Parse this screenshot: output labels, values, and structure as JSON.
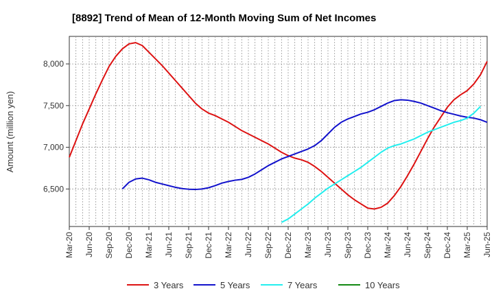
{
  "chart_data": {
    "type": "line",
    "title": "[8892]  Trend of Mean of 12-Month Moving Sum of Net Incomes",
    "xlabel": "",
    "ylabel": "Amount (million yen)",
    "x_tick_labels": [
      "Mar-20",
      "Jun-20",
      "Sep-20",
      "Dec-20",
      "Mar-21",
      "Jun-21",
      "Sep-21",
      "Dec-21",
      "Mar-22",
      "Jun-22",
      "Sep-22",
      "Dec-22",
      "Mar-23",
      "Jun-23",
      "Sep-23",
      "Dec-23",
      "Mar-24",
      "Jun-24",
      "Sep-24",
      "Dec-24",
      "Mar-25",
      "Jun-25"
    ],
    "y_ticks": [
      6500,
      7000,
      7500,
      8000
    ],
    "y_tick_labels": [
      "6,500",
      "7,000",
      "7,500",
      "8,000"
    ],
    "ylim": [
      6050,
      8330
    ],
    "grid": true,
    "legend_position": "bottom",
    "series": [
      {
        "name": "3 Years",
        "color": "#dd1111",
        "start_month": "Mar-20",
        "values": [
          6880,
          7080,
          7280,
          7460,
          7640,
          7810,
          7970,
          8090,
          8180,
          8240,
          8255,
          8220,
          8140,
          8060,
          7980,
          7890,
          7800,
          7710,
          7620,
          7530,
          7460,
          7410,
          7380,
          7340,
          7300,
          7250,
          7200,
          7160,
          7120,
          7080,
          7040,
          6990,
          6940,
          6900,
          6870,
          6850,
          6820,
          6770,
          6710,
          6640,
          6570,
          6500,
          6430,
          6370,
          6320,
          6270,
          6260,
          6280,
          6330,
          6420,
          6530,
          6660,
          6800,
          6950,
          7100,
          7240,
          7360,
          7480,
          7570,
          7630,
          7680,
          7760,
          7870,
          8030
        ]
      },
      {
        "name": "5 Years",
        "color": "#1111cc",
        "start_month": "Nov-20",
        "values": [
          6500,
          6580,
          6620,
          6630,
          6610,
          6580,
          6560,
          6540,
          6520,
          6505,
          6497,
          6494,
          6500,
          6515,
          6540,
          6570,
          6590,
          6605,
          6615,
          6640,
          6680,
          6730,
          6780,
          6820,
          6860,
          6890,
          6920,
          6950,
          6980,
          7020,
          7080,
          7160,
          7240,
          7300,
          7340,
          7370,
          7400,
          7420,
          7450,
          7490,
          7530,
          7560,
          7570,
          7565,
          7550,
          7530,
          7500,
          7470,
          7440,
          7415,
          7395,
          7375,
          7360,
          7350,
          7330,
          7300
        ]
      },
      {
        "name": "7 Years",
        "color": "#22eeee",
        "start_month": "Nov-22",
        "values": [
          6100,
          6140,
          6200,
          6260,
          6320,
          6390,
          6450,
          6510,
          6560,
          6610,
          6660,
          6710,
          6760,
          6820,
          6880,
          6940,
          6990,
          7020,
          7040,
          7070,
          7100,
          7140,
          7180,
          7210,
          7240,
          7270,
          7300,
          7320,
          7350,
          7410,
          7490
        ]
      },
      {
        "name": "10 Years",
        "color": "#118811",
        "start_month": "Mar-25",
        "values": []
      }
    ]
  }
}
